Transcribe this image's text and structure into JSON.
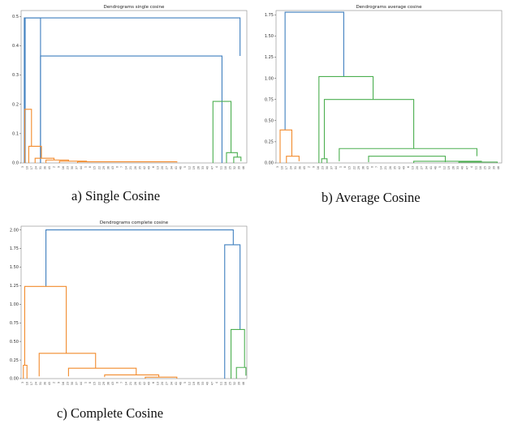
{
  "colors": {
    "blue": "#3f7fbf",
    "orange": "#f28b2c",
    "green": "#4caf50",
    "axis": "#888888"
  },
  "captions": [
    "a) Single Cosine",
    "b) Average Cosine",
    "c) Complete Cosine"
  ],
  "chart_data": [
    {
      "type": "dendrogram",
      "title": "Dendrograms single cosine",
      "ylim": [
        0,
        0.52
      ],
      "yticks": [
        0.0,
        0.1,
        0.2,
        0.3,
        0.4,
        0.5
      ],
      "leaves": 50,
      "links": [
        {
          "l": 0.4,
          "r": 48,
          "h": 0.495,
          "hl": 0,
          "hr": 0.365,
          "c": "blue"
        },
        {
          "l": 3.8,
          "r": 44,
          "h": 0.365,
          "hl": 0,
          "hr": 0,
          "c": "blue"
        },
        {
          "l": 0.2,
          "r": 3.8,
          "h": 0.495,
          "hl": 0,
          "hr": 0,
          "c": "blue"
        },
        {
          "l": 0.3,
          "r": 1.8,
          "h": 0.183,
          "hl": 0,
          "hr": 0.057,
          "c": "orange"
        },
        {
          "l": 1.2,
          "r": 4.0,
          "h": 0.057,
          "hl": 0,
          "hr": 0.016,
          "c": "orange"
        },
        {
          "l": 2.6,
          "r": 6.8,
          "h": 0.016,
          "hl": 0,
          "hr": 0.01,
          "c": "orange"
        },
        {
          "l": 5.0,
          "r": 10.0,
          "h": 0.01,
          "hl": 0,
          "hr": 0.006,
          "c": "orange"
        },
        {
          "l": 8.0,
          "r": 14.0,
          "h": 0.006,
          "hl": 0,
          "hr": 0.004,
          "c": "orange"
        },
        {
          "l": 12.0,
          "r": 34.0,
          "h": 0.004,
          "hl": 0,
          "hr": 0.002,
          "c": "orange"
        },
        {
          "l": 42.0,
          "r": 46.0,
          "h": 0.21,
          "hl": 0,
          "hr": 0.035,
          "c": "green"
        },
        {
          "l": 45.0,
          "r": 47.4,
          "h": 0.035,
          "hl": 0,
          "hr": 0.02,
          "c": "green"
        },
        {
          "l": 46.6,
          "r": 48.2,
          "h": 0.02,
          "hl": 0,
          "hr": 0.006,
          "c": "green"
        }
      ]
    },
    {
      "type": "dendrogram",
      "title": "Dendrograms average cosine",
      "ylim": [
        0,
        1.8
      ],
      "yticks": [
        0.0,
        0.25,
        0.5,
        0.75,
        1.0,
        1.25,
        1.5,
        1.75
      ],
      "leaves": 50,
      "links": [
        {
          "l": 1.5,
          "r": 14.5,
          "h": 1.78,
          "hl": 0.39,
          "hr": 1.02,
          "c": "blue"
        },
        {
          "l": 0.4,
          "r": 3.0,
          "h": 0.39,
          "hl": 0,
          "hr": 0.08,
          "c": "orange"
        },
        {
          "l": 1.8,
          "r": 4.6,
          "h": 0.08,
          "hl": 0,
          "hr": 0.02,
          "c": "orange"
        },
        {
          "l": 9.0,
          "r": 21.0,
          "h": 1.02,
          "hl": 0,
          "hr": 0.75,
          "c": "green"
        },
        {
          "l": 10.2,
          "r": 30.0,
          "h": 0.75,
          "hl": 0.05,
          "hr": 0.17,
          "c": "green"
        },
        {
          "l": 9.6,
          "r": 10.8,
          "h": 0.05,
          "hl": 0,
          "hr": 0,
          "c": "green"
        },
        {
          "l": 13.5,
          "r": 44.0,
          "h": 0.17,
          "hl": 0.02,
          "hr": 0.08,
          "c": "green"
        },
        {
          "l": 20.0,
          "r": 37.0,
          "h": 0.08,
          "hl": 0.01,
          "hr": 0.01,
          "c": "green"
        },
        {
          "l": 30.0,
          "r": 45.0,
          "h": 0.02,
          "hl": 0,
          "hr": 0.01,
          "c": "green"
        },
        {
          "l": 40.0,
          "r": 48.5,
          "h": 0.01,
          "hl": 0,
          "hr": 0,
          "c": "green"
        }
      ]
    },
    {
      "type": "dendrogram",
      "title": "Dendrograms complete cosine",
      "ylim": [
        0,
        2.05
      ],
      "yticks": [
        0.0,
        0.25,
        0.5,
        0.75,
        1.0,
        1.25,
        1.5,
        1.75,
        2.0
      ],
      "leaves": 50,
      "links": [
        {
          "l": 5.0,
          "r": 46.5,
          "h": 2.0,
          "hl": 1.24,
          "hr": 1.8,
          "c": "blue"
        },
        {
          "l": 44.6,
          "r": 48.0,
          "h": 1.8,
          "hl": 0,
          "hr": 0.66,
          "c": "blue"
        },
        {
          "l": 0.3,
          "r": 9.5,
          "h": 1.24,
          "hl": 0.18,
          "hr": 0.34,
          "c": "orange"
        },
        {
          "l": 0.0,
          "r": 0.8,
          "h": 0.18,
          "hl": 0,
          "hr": 0,
          "c": "orange"
        },
        {
          "l": 3.5,
          "r": 16.0,
          "h": 0.34,
          "hl": 0.03,
          "hr": 0.14,
          "c": "orange"
        },
        {
          "l": 10.0,
          "r": 25.0,
          "h": 0.14,
          "hl": 0.03,
          "hr": 0.05,
          "c": "orange"
        },
        {
          "l": 18.0,
          "r": 30.0,
          "h": 0.05,
          "hl": 0.02,
          "hr": 0.02,
          "c": "orange"
        },
        {
          "l": 27.0,
          "r": 34.0,
          "h": 0.02,
          "hl": 0,
          "hr": 0,
          "c": "orange"
        },
        {
          "l": 46.0,
          "r": 49.0,
          "h": 0.66,
          "hl": 0,
          "hr": 0.15,
          "c": "green"
        },
        {
          "l": 47.2,
          "r": 49.3,
          "h": 0.15,
          "hl": 0,
          "hr": 0.04,
          "c": "green"
        }
      ]
    }
  ]
}
